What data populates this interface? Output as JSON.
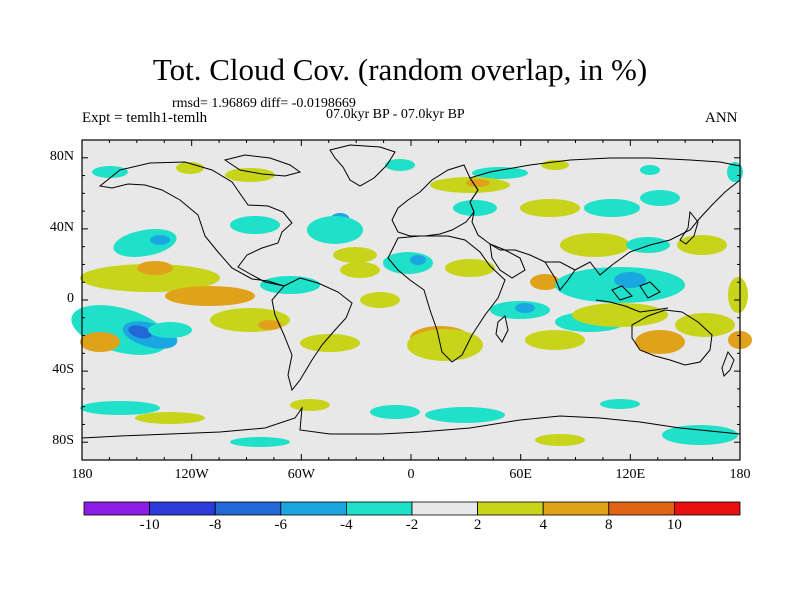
{
  "title": "Tot. Cloud Cov. (random overlap, in %)",
  "stats": "rmsd= 1.96869  diff= -0.0198669",
  "period": "07.0kyr BP - 07.0kyr BP",
  "experiment": "Expt = temlh1-temlh",
  "season": "ANN",
  "lat_ticks": [
    "80N",
    "40N",
    "0",
    "40S",
    "80S"
  ],
  "lon_ticks": [
    "180",
    "120W",
    "60W",
    "0",
    "60E",
    "120E",
    "180"
  ],
  "colorbar": {
    "labels": [
      "-10",
      "-8",
      "-6",
      "-4",
      "-2",
      "2",
      "4",
      "8",
      "10"
    ],
    "colors": [
      "#8a1ee6",
      "#2b3ad8",
      "#2366d6",
      "#1aa6e0",
      "#1fe0c8",
      "#e8e8e8",
      "#c8d41a",
      "#e0a21a",
      "#e06414",
      "#e81010"
    ]
  },
  "palette": {
    "background": "#e8e8e8",
    "pos1": "#c8d41a",
    "pos2": "#e0a21a",
    "neg1": "#1fe0c8",
    "neg2": "#1aa6e0",
    "neg3": "#2366d6",
    "neg4": "#2b3ad8"
  }
}
